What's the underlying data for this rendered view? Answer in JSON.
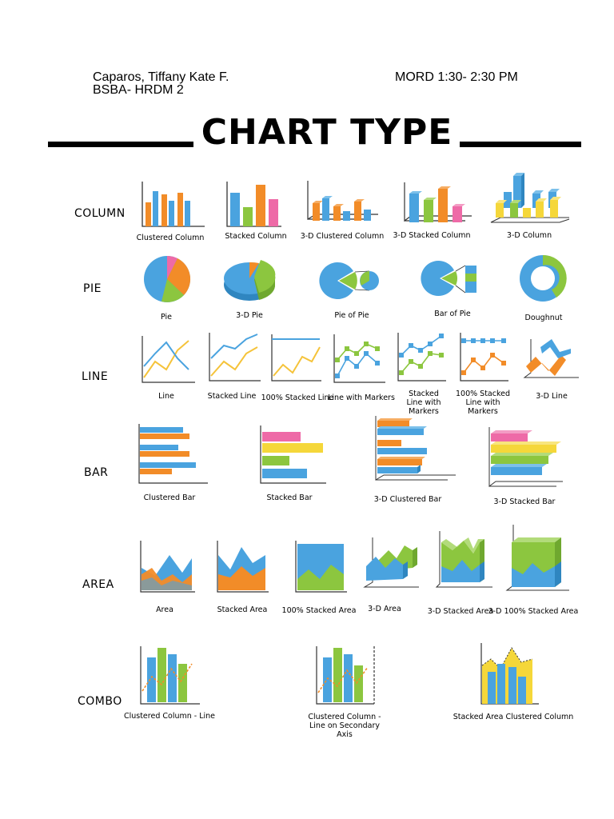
{
  "header": {
    "name": "Caparos, Tiffany Kate F.",
    "course": "BSBA- HRDM 2",
    "schedule": "MORD 1:30- 2:30 PM"
  },
  "title": "CHART TYPE",
  "colors": {
    "blue": "#4aa3df",
    "orange": "#f28c28",
    "green": "#8cc63f",
    "pink": "#ee6aa7",
    "yellow": "#f5d73a",
    "axis": "#333333"
  },
  "rows": [
    {
      "label": "COLUMN",
      "items": [
        "Clustered Column",
        "Stacked Column",
        "3-D Clustered Column",
        "3-D Stacked Column",
        "3-D Column"
      ]
    },
    {
      "label": "PIE",
      "items": [
        "Pie",
        "3-D Pie",
        "Pie of Pie",
        "Bar of Pie",
        "Doughnut"
      ]
    },
    {
      "label": "LINE",
      "items": [
        "Line",
        "Stacked Line",
        "100% Stacked Line",
        "Line with Markers",
        "Stacked Line with Markers",
        "100% Stacked Line with Markers",
        "3-D Line"
      ]
    },
    {
      "label": "BAR",
      "items": [
        "Clustered Bar",
        "Stacked Bar",
        "3-D Clustered Bar",
        "3-D Stacked Bar"
      ]
    },
    {
      "label": "AREA",
      "items": [
        "Area",
        "Stacked Area",
        "100% Stacked Area",
        "3-D Area",
        "3-D Stacked Area",
        "3-D 100% Stacked Area"
      ]
    },
    {
      "label": "COMBO",
      "items": [
        "Clustered Column - Line",
        "Clustered Column - Line on Secondary Axis",
        "Stacked Area Clustered Column"
      ]
    }
  ]
}
